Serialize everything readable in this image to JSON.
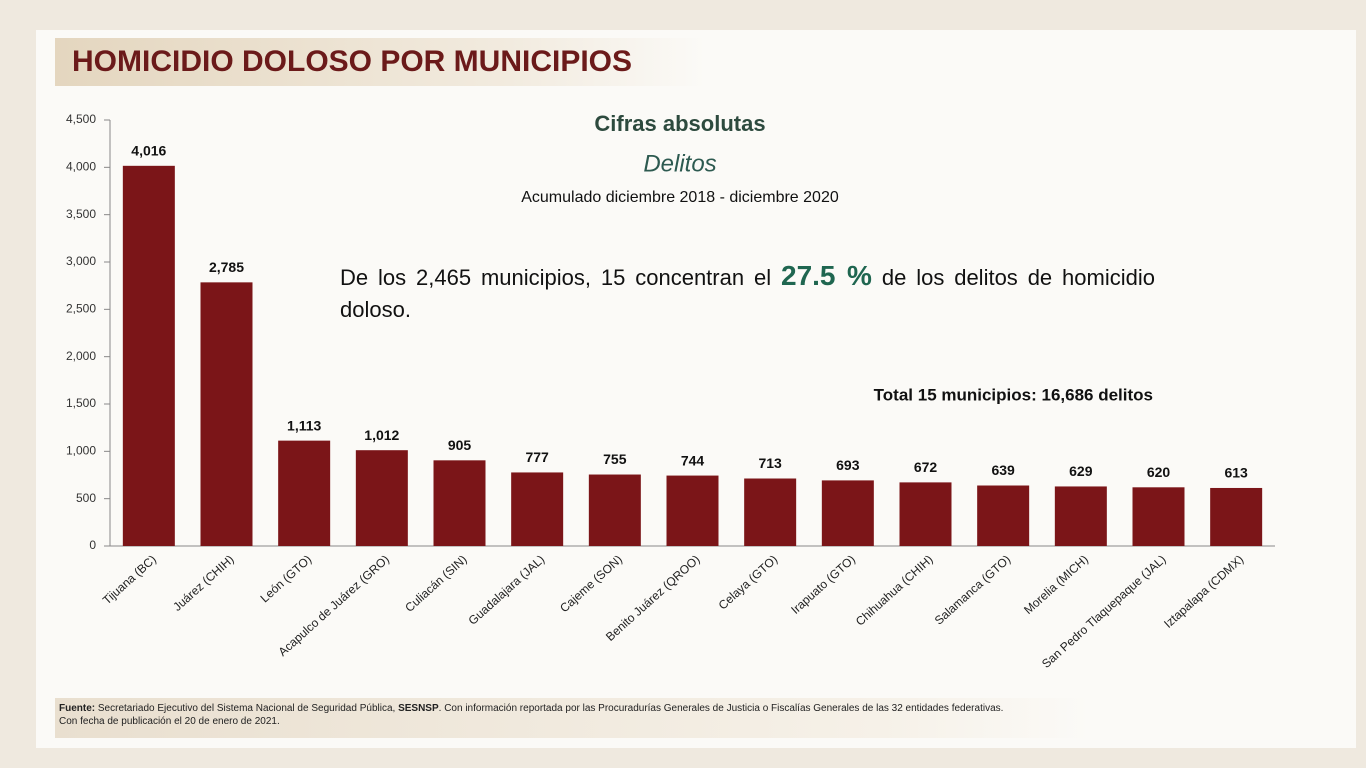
{
  "header": {
    "title": "HOMICIDIO DOLOSO POR MUNICIPIOS"
  },
  "chart_data": {
    "type": "bar",
    "title": "Cifras absolutas",
    "subtitle": "Delitos",
    "period": "Acumulado diciembre 2018 - diciembre 2020",
    "categories": [
      "Tijuana (BC)",
      "Juárez (CHIH)",
      "León (GTO)",
      "Acapulco de Juárez (GRO)",
      "Culiacán (SIN)",
      "Guadalajara (JAL)",
      "Cajeme (SON)",
      "Benito Juárez (QROO)",
      "Celaya (GTO)",
      "Irapuato (GTO)",
      "Chihuahua (CHIH)",
      "Salamanca (GTO)",
      "Morelia (MICH)",
      "San Pedro Tlaquepaque (JAL)",
      "Iztapalapa (CDMX)"
    ],
    "values": [
      4016,
      2785,
      1113,
      1012,
      905,
      777,
      755,
      744,
      713,
      693,
      672,
      639,
      629,
      620,
      613
    ],
    "value_labels": [
      "4,016",
      "2,785",
      "1,113",
      "1,012",
      "905",
      "777",
      "755",
      "744",
      "713",
      "693",
      "672",
      "639",
      "629",
      "620",
      "613"
    ],
    "color": "#7b1518",
    "ylim": [
      0,
      4500
    ],
    "yticks": [
      0,
      500,
      {
        "value": 1000,
        "label": "1,000"
      },
      {
        "value": 1500,
        "label": "1,500"
      },
      {
        "value": 2000,
        "label": "2,000"
      },
      {
        "value": 2500,
        "label": "2,500"
      },
      {
        "value": 3000,
        "label": "3,000"
      },
      {
        "value": 3500,
        "label": "3,500"
      },
      {
        "value": 4000,
        "label": "4,000"
      },
      {
        "value": 4500,
        "label": "4,500"
      }
    ],
    "grid": false,
    "annotations": {
      "text_before": "De los 2,465 municipios, 15 concentran el",
      "highlight": "27.5 %",
      "text_after": "de los delitos de homicidio doloso.",
      "total": "Total 15 municipios: 16,686 delitos"
    }
  },
  "footer": {
    "source_label": "Fuente:",
    "source_text": "Secretariado Ejecutivo del Sistema Nacional de Seguridad Pública,",
    "source_bold": "SESNSP",
    "source_rest": ". Con información reportada por las Procuradurías Generales de Justicia o Fiscalías Generales de las 32 entidades federativas.",
    "date": "Con fecha de publicación el 20 de enero de 2021."
  }
}
